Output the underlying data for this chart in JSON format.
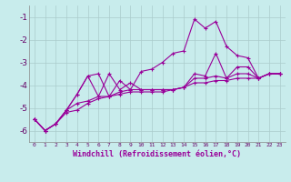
{
  "xlabel": "Windchill (Refroidissement éolien,°C)",
  "bg_color": "#c8ecec",
  "grid_color": "#aacccc",
  "line_color": "#990099",
  "x_ticks": [
    0,
    1,
    2,
    3,
    4,
    5,
    6,
    7,
    8,
    9,
    10,
    11,
    12,
    13,
    14,
    15,
    16,
    17,
    18,
    19,
    20,
    21,
    22,
    23
  ],
  "ylim": [
    -6.5,
    -0.5
  ],
  "xlim": [
    -0.5,
    23.5
  ],
  "yticks": [
    -6,
    -5,
    -4,
    -3,
    -2,
    -1
  ],
  "series": [
    [
      -5.5,
      -6.0,
      -5.7,
      -5.1,
      -4.4,
      -3.6,
      -3.5,
      -4.5,
      -3.8,
      -4.2,
      -3.4,
      -3.3,
      -3.0,
      -2.6,
      -2.5,
      -1.1,
      -1.5,
      -1.2,
      -2.3,
      -2.7,
      -2.8,
      -3.7,
      -3.5,
      -3.5
    ],
    [
      -5.5,
      -6.0,
      -5.7,
      -5.1,
      -4.4,
      -3.6,
      -4.5,
      -3.5,
      -4.2,
      -3.9,
      -4.2,
      -4.2,
      -4.2,
      -4.2,
      -4.1,
      -3.5,
      -3.6,
      -2.6,
      -3.7,
      -3.2,
      -3.2,
      -3.7,
      -3.5,
      -3.5
    ],
    [
      -5.5,
      -6.0,
      -5.7,
      -5.1,
      -4.8,
      -4.7,
      -4.5,
      -4.5,
      -4.3,
      -4.2,
      -4.2,
      -4.2,
      -4.2,
      -4.2,
      -4.1,
      -3.7,
      -3.7,
      -3.6,
      -3.7,
      -3.5,
      -3.5,
      -3.7,
      -3.5,
      -3.5
    ],
    [
      -5.5,
      -6.0,
      -5.7,
      -5.2,
      -5.1,
      -4.8,
      -4.6,
      -4.5,
      -4.4,
      -4.3,
      -4.3,
      -4.3,
      -4.3,
      -4.2,
      -4.1,
      -3.9,
      -3.9,
      -3.8,
      -3.8,
      -3.7,
      -3.7,
      -3.7,
      -3.5,
      -3.5
    ]
  ]
}
